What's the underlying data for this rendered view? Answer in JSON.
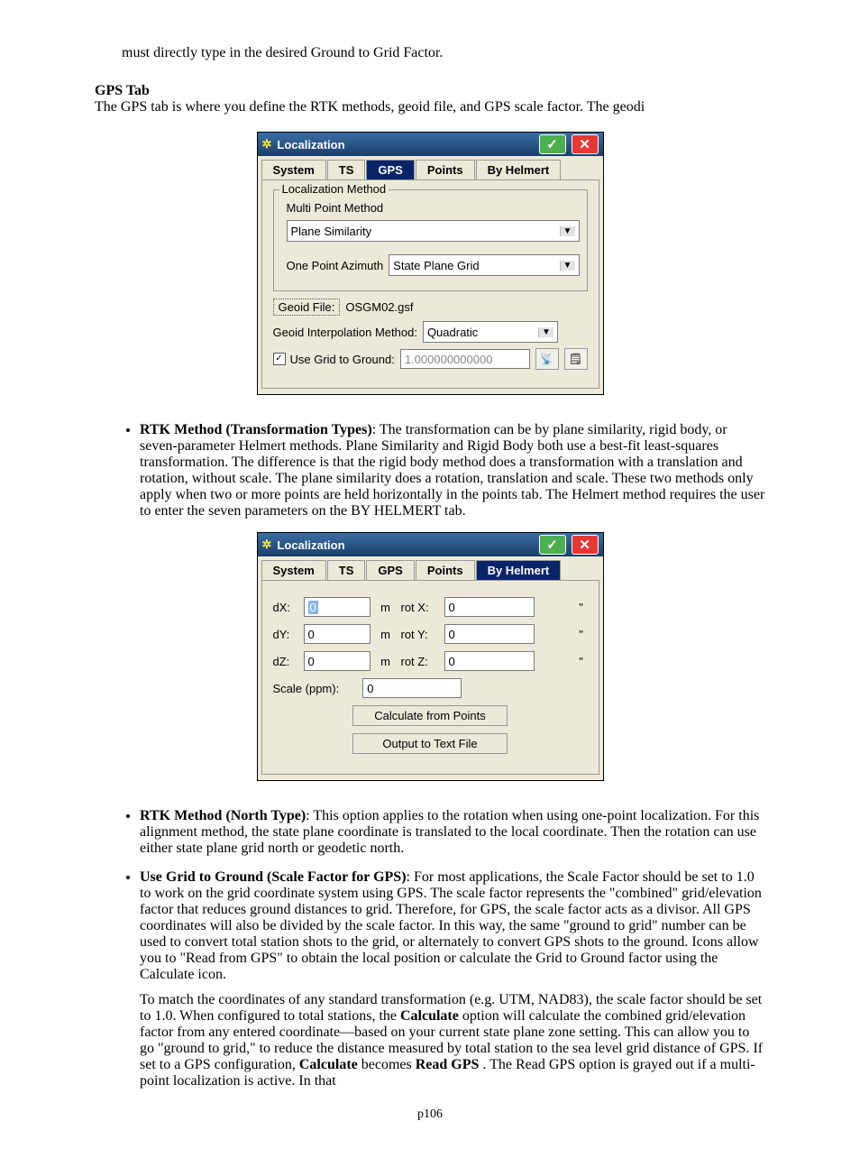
{
  "doc": {
    "intro": "must directly type in the desired Ground to Grid Factor.",
    "heading": "GPS Tab",
    "headtxt": "The GPS tab is where you define the RTK methods, geoid file, and GPS scale factor.  The geodi",
    "pagenum": "p106"
  },
  "dlg1": {
    "title": "Localization",
    "activeTab": "GPS",
    "tabs": [
      "System",
      "TS",
      "GPS",
      "Points",
      "By Helmert"
    ],
    "groupLegend": "Localization Method",
    "mpm": "Multi Point Method",
    "sel1": "Plane Similarity",
    "opa": "One Point Azimuth",
    "sel2": "State Plane Grid",
    "geoidBtn": "Geoid File:",
    "geoidVal": "OSGM02.gsf",
    "gim": "Geoid Interpolation Method:",
    "sel3": "Quadratic",
    "ck": "Use Grid to Ground:",
    "val": "1.000000000000"
  },
  "b1": {
    "lead": "RTK Method (Transformation Types)",
    "txt": ": The transformation can be by plane similarity, rigid body, or seven-parameter Helmert methods. Plane Similarity and Rigid Body both use a best-fit least-squares transformation. The difference is that the rigid body method does a transformation with a translation and rotation, without scale. The plane similarity does a rotation, translation and scale. These two methods only apply when two or more points are held horizontally in the points tab. The Helmert method requires the user to enter the seven parameters on the BY HELMERT tab."
  },
  "dlg2": {
    "title": "Localization",
    "activeTab": "By Helmert",
    "tabs": [
      "System",
      "TS",
      "GPS",
      "Points",
      "By Helmert"
    ],
    "rows": [
      {
        "l": "dX:",
        "v": "0",
        "u": "m",
        "l2": "rot X:",
        "v2": "0",
        "q": "\""
      },
      {
        "l": "dY:",
        "v": "0",
        "u": "m",
        "l2": "rot Y:",
        "v2": "0",
        "q": "\""
      },
      {
        "l": "dZ:",
        "v": "0",
        "u": "m",
        "l2": "rot Z:",
        "v2": "0",
        "q": "\""
      }
    ],
    "scale": "Scale (ppm):",
    "scaleV": "0",
    "btn1": "Calculate from Points",
    "btn2": "Output to Text File"
  },
  "b2": {
    "lead": "RTK Method (North Type)",
    "txt": ": This option applies to the rotation when using one-point localization. For this alignment method, the state plane coordinate is translated to the local coordinate. Then the rotation can use either state plane grid north or geodetic north."
  },
  "b3": {
    "lead": "Use Grid to Ground (Scale Factor for GPS)",
    "txt": ":  For most applications, the Scale Factor should be set to 1.0 to work on the grid coordinate system using GPS.  The scale factor represents the \"combined\" grid/elevation factor that reduces ground distances to grid.  Therefore, for GPS, the scale factor acts as a divisor. All GPS coordinates will also be divided by the scale factor.  In this way, the same \"ground to grid\" number can be used to convert total station shots to the grid, or alternately to convert GPS shots to the ground.  Icons allow you to \"Read from GPS\" to obtain the local position or calculate the Grid to Ground factor using the Calculate icon."
  },
  "para": {
    "p1a": "To match the coordinates of any standard transformation (e.g. UTM, NAD83), the scale factor should be set to 1.0. When configured to total stations, the",
    "calc": "Calculate",
    "p1b": " option will calculate the combined grid/elevation factor from any entered coordinate—based on your current state plane zone setting.  This can allow you to go \"ground to grid,\" to reduce the distance measured by total station to the sea level grid distance of GPS.  If set to a GPS configuration, ",
    "calc2": "Calculate",
    "becomes": " becomes ",
    "read": "Read GPS",
    "p1c": " .  The Read GPS option is grayed out if a multi-point localization is active.  In that"
  }
}
